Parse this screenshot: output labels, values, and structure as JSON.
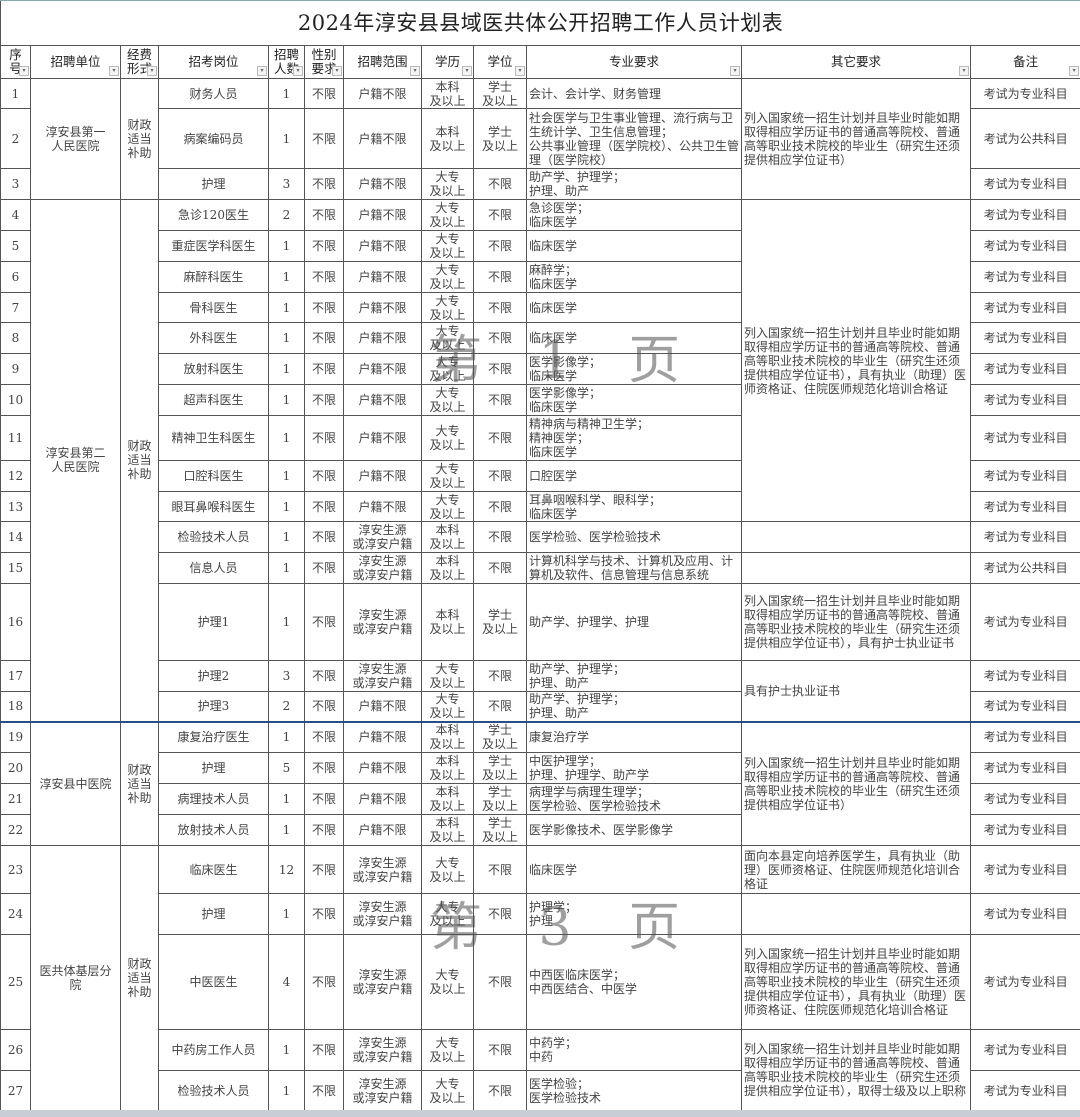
{
  "title": "2024年淳安县县域医共体公开招聘工作人员计划表",
  "headers": [
    "序号",
    "招聘单位",
    "经费形式",
    "招考岗位",
    "招聘人数",
    "性别要求",
    "招聘范围",
    "学历",
    "学位",
    "专业要求",
    "其它要求",
    "备注"
  ],
  "header_display": [
    "序\n号",
    "招聘单位",
    "经费\n形式",
    "招考岗位",
    "招聘\n人数",
    "性别\n要求",
    "招聘范围",
    "学历",
    "学位",
    "专业要求",
    "其它要求",
    "备注"
  ],
  "units": [
    {
      "name": "淳安县第一\n人民医院",
      "funding": "财政\n适当\n补助",
      "rows": [
        1,
        3
      ]
    },
    {
      "name": "淳安县第二\n人民医院",
      "funding": "财政\n适当\n补助",
      "rows": [
        4,
        18
      ]
    },
    {
      "name": "淳安县中医院",
      "funding": "财政\n适当\n补助",
      "rows": [
        19,
        22
      ]
    },
    {
      "name": "医共体基层分\n院",
      "funding": "财政\n适当\n补助",
      "rows": [
        23,
        27
      ]
    }
  ],
  "other_requirements": [
    {
      "rows": [
        1,
        3
      ],
      "text": "列入国家统一招生计划并且毕业时能如期取得相应学历证书的普通高等院校、普通高等职业技术院校的毕业生（研究生还须提供相应学位证书）"
    },
    {
      "rows": [
        4,
        13
      ],
      "text": "列入国家统一招生计划并且毕业时能如期取得相应学历证书的普通高等院校、普通高等职业技术院校的毕业生（研究生还须提供相应学位证书），具有执业（助理）医师资格证、住院医师规范化培训合格证"
    },
    {
      "rows": [
        14,
        14
      ],
      "text": ""
    },
    {
      "rows": [
        15,
        15
      ],
      "text": ""
    },
    {
      "rows": [
        16,
        16
      ],
      "text": "列入国家统一招生计划并且毕业时能如期取得相应学历证书的普通高等院校、普通高等职业技术院校的毕业生（研究生还须提供相应学位证书），具有护士执业证书"
    },
    {
      "rows": [
        17,
        18
      ],
      "text": "具有护士执业证书"
    },
    {
      "rows": [
        19,
        22
      ],
      "text": "列入国家统一招生计划并且毕业时能如期取得相应学历证书的普通高等院校、普通高等职业技术院校的毕业生（研究生还须提供相应学位证书）"
    },
    {
      "rows": [
        23,
        23
      ],
      "text": "面向本县定向培养医学生，具有执业（助理）医师资格证、住院医师规范化培训合格证"
    },
    {
      "rows": [
        24,
        24
      ],
      "text": ""
    },
    {
      "rows": [
        25,
        25
      ],
      "text": "列入国家统一招生计划并且毕业时能如期取得相应学历证书的普通高等院校、普通高等职业技术院校的毕业生（研究生还须提供相应学位证书），具有执业（助理）医师资格证、住院医师规范化培训合格证"
    },
    {
      "rows": [
        26,
        27
      ],
      "text": "列入国家统一招生计划并且毕业时能如期取得相应学历证书的普通高等院校、普通高等职业技术院校的毕业生（研究生还须提供相应学位证书），取得士级及以上职称"
    }
  ],
  "rows": [
    {
      "no": "1",
      "post": "财务人员",
      "count": "1",
      "gender": "不限",
      "scope": "户籍不限",
      "edu": "本科\n及以上",
      "degree": "学士\n及以上",
      "major": "会计、会计学、财务管理",
      "note": "考试为专业科目"
    },
    {
      "no": "2",
      "post": "病案编码员",
      "count": "1",
      "gender": "不限",
      "scope": "户籍不限",
      "edu": "本科\n及以上",
      "degree": "学士\n及以上",
      "major": "社会医学与卫生事业管理、流行病与卫生统计学、卫生信息管理；\n公共事业管理（医学院校）、公共卫生管理（医学院校）",
      "note": "考试为公共科目"
    },
    {
      "no": "3",
      "post": "护理",
      "count": "3",
      "gender": "不限",
      "scope": "户籍不限",
      "edu": "大专\n及以上",
      "degree": "不限",
      "major": "助产学、护理学；\n护理、助产",
      "note": "考试为专业科目"
    },
    {
      "no": "4",
      "post": "急诊120医生",
      "count": "2",
      "gender": "不限",
      "scope": "户籍不限",
      "edu": "大专\n及以上",
      "degree": "不限",
      "major": "急诊医学；\n临床医学",
      "note": "考试为专业科目"
    },
    {
      "no": "5",
      "post": "重症医学科医生",
      "count": "1",
      "gender": "不限",
      "scope": "户籍不限",
      "edu": "大专\n及以上",
      "degree": "不限",
      "major": "临床医学",
      "note": "考试为专业科目"
    },
    {
      "no": "6",
      "post": "麻醉科医生",
      "count": "1",
      "gender": "不限",
      "scope": "户籍不限",
      "edu": "大专\n及以上",
      "degree": "不限",
      "major": "麻醉学；\n临床医学",
      "note": "考试为专业科目"
    },
    {
      "no": "7",
      "post": "骨科医生",
      "count": "1",
      "gender": "不限",
      "scope": "户籍不限",
      "edu": "大专\n及以上",
      "degree": "不限",
      "major": "临床医学",
      "note": "考试为专业科目"
    },
    {
      "no": "8",
      "post": "外科医生",
      "count": "1",
      "gender": "不限",
      "scope": "户籍不限",
      "edu": "大专\n及以上",
      "degree": "不限",
      "major": "临床医学",
      "note": "考试为专业科目"
    },
    {
      "no": "9",
      "post": "放射科医生",
      "count": "1",
      "gender": "不限",
      "scope": "户籍不限",
      "edu": "大专\n及以上",
      "degree": "不限",
      "major": "医学影像学；\n临床医学",
      "note": "考试为专业科目"
    },
    {
      "no": "10",
      "post": "超声科医生",
      "count": "1",
      "gender": "不限",
      "scope": "户籍不限",
      "edu": "大专\n及以上",
      "degree": "不限",
      "major": "医学影像学；\n临床医学",
      "note": "考试为专业科目"
    },
    {
      "no": "11",
      "post": "精神卫生科医生",
      "count": "1",
      "gender": "不限",
      "scope": "户籍不限",
      "edu": "大专\n及以上",
      "degree": "不限",
      "major": "精神病与精神卫生学；\n精神医学；\n临床医学",
      "note": "考试为专业科目"
    },
    {
      "no": "12",
      "post": "口腔科医生",
      "count": "1",
      "gender": "不限",
      "scope": "户籍不限",
      "edu": "大专\n及以上",
      "degree": "不限",
      "major": "口腔医学",
      "note": "考试为专业科目"
    },
    {
      "no": "13",
      "post": "眼耳鼻喉科医生",
      "count": "1",
      "gender": "不限",
      "scope": "户籍不限",
      "edu": "大专\n及以上",
      "degree": "不限",
      "major": "耳鼻咽喉科学、眼科学；\n临床医学",
      "note": "考试为专业科目"
    },
    {
      "no": "14",
      "post": "检验技术人员",
      "count": "1",
      "gender": "不限",
      "scope": "淳安生源\n或淳安户籍",
      "edu": "本科\n及以上",
      "degree": "不限",
      "major": "医学检验、医学检验技术",
      "note": "考试为专业科目"
    },
    {
      "no": "15",
      "post": "信息人员",
      "count": "1",
      "gender": "不限",
      "scope": "淳安生源\n或淳安户籍",
      "edu": "本科\n及以上",
      "degree": "不限",
      "major": "计算机科学与技术、计算机及应用、计算机及软件、信息管理与信息系统",
      "note": "考试为公共科目"
    },
    {
      "no": "16",
      "post": "护理1",
      "count": "1",
      "gender": "不限",
      "scope": "淳安生源\n或淳安户籍",
      "edu": "本科\n及以上",
      "degree": "学士\n及以上",
      "major": "助产学、护理学、护理",
      "note": "考试为专业科目"
    },
    {
      "no": "17",
      "post": "护理2",
      "count": "3",
      "gender": "不限",
      "scope": "淳安生源\n或淳安户籍",
      "edu": "大专\n及以上",
      "degree": "不限",
      "major": "助产学、护理学；\n护理、助产",
      "note": "考试为专业科目"
    },
    {
      "no": "18",
      "post": "护理3",
      "count": "2",
      "gender": "不限",
      "scope": "户籍不限",
      "edu": "大专\n及以上",
      "degree": "不限",
      "major": "助产学、护理学；\n护理、助产",
      "note": "考试为专业科目"
    },
    {
      "no": "19",
      "post": "康复治疗医生",
      "count": "1",
      "gender": "不限",
      "scope": "户籍不限",
      "edu": "本科\n及以上",
      "degree": "学士\n及以上",
      "major": "康复治疗学",
      "note": "考试为专业科目"
    },
    {
      "no": "20",
      "post": "护理",
      "count": "5",
      "gender": "不限",
      "scope": "户籍不限",
      "edu": "本科\n及以上",
      "degree": "学士\n及以上",
      "major": "中医护理学；\n护理、护理学、助产学",
      "note": "考试为专业科目"
    },
    {
      "no": "21",
      "post": "病理技术人员",
      "count": "1",
      "gender": "不限",
      "scope": "户籍不限",
      "edu": "本科\n及以上",
      "degree": "学士\n及以上",
      "major": "病理学与病理生理学；\n医学检验、医学检验技术",
      "note": "考试为专业科目"
    },
    {
      "no": "22",
      "post": "放射技术人员",
      "count": "1",
      "gender": "不限",
      "scope": "户籍不限",
      "edu": "本科\n及以上",
      "degree": "学士\n及以上",
      "major": "医学影像技术、医学影像学",
      "note": "考试为专业科目"
    },
    {
      "no": "23",
      "post": "临床医生",
      "count": "12",
      "gender": "不限",
      "scope": "淳安生源\n或淳安户籍",
      "edu": "大专\n及以上",
      "degree": "不限",
      "major": "临床医学",
      "note": "考试为专业科目"
    },
    {
      "no": "24",
      "post": "护理",
      "count": "1",
      "gender": "不限",
      "scope": "淳安生源\n或淳安户籍",
      "edu": "大专\n及以上",
      "degree": "不限",
      "major": "护理学；\n护理",
      "note": "考试为专业科目"
    },
    {
      "no": "25",
      "post": "中医医生",
      "count": "4",
      "gender": "不限",
      "scope": "淳安生源\n或淳安户籍",
      "edu": "大专\n及以上",
      "degree": "不限",
      "major": "中西医临床医学；\n中西医结合、中医学",
      "note": "考试为专业科目"
    },
    {
      "no": "26",
      "post": "中药房工作人员",
      "count": "1",
      "gender": "不限",
      "scope": "淳安生源\n或淳安户籍",
      "edu": "大专\n及以上",
      "degree": "不限",
      "major": "中药学；\n中药",
      "note": "考试为专业科目"
    },
    {
      "no": "27",
      "post": "检验技术人员",
      "count": "1",
      "gender": "不限",
      "scope": "淳安生源\n或淳安户籍",
      "edu": "大专\n及以上",
      "degree": "不限",
      "major": "医学检验；\n医学检验技术",
      "note": "考试为专业科目"
    }
  ],
  "watermarks": [
    "第 1 页",
    "第 3 页"
  ],
  "filter_icon": "dropdown-filter-icon"
}
